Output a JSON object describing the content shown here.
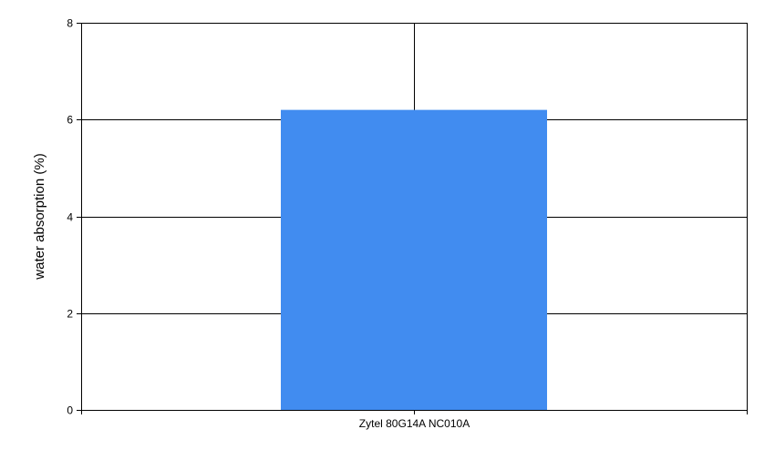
{
  "chart_data": {
    "type": "bar",
    "categories": [
      "Zytel 80G14A NC010A"
    ],
    "values": [
      6.2
    ],
    "title": "",
    "xlabel": "",
    "ylabel": "water absorption (%)",
    "ylim": [
      0,
      8
    ],
    "yticks": [
      0,
      2,
      4,
      6,
      8
    ],
    "grid": true,
    "legend": "none",
    "colors": {
      "bar": "#418CF0",
      "grid": "#000000",
      "axis": "#000000"
    }
  }
}
